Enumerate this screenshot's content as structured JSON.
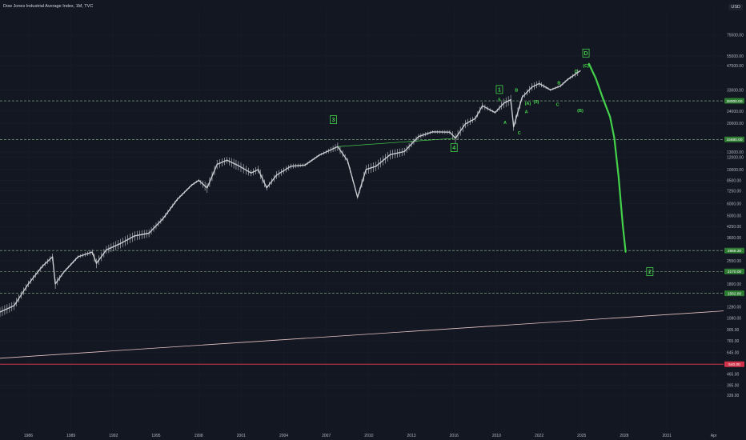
{
  "header": {
    "title": "Dow Jones Industrial Average Index, 1M, TVC",
    "currency": "USD"
  },
  "colors": {
    "background": "#131722",
    "candle_up": "#c9cbd1",
    "projection": "#43d14a",
    "level_line": "#8fbf8f",
    "trend_line": "#e8c4c4",
    "support_line": "#d2334a",
    "axis_text": "#b2b5be",
    "label_box": "#26a69a"
  },
  "chart_data": {
    "type": "line",
    "scale": "log",
    "title": "Dow Jones Industrial Average Index, 1M, TVC",
    "xlabel": "",
    "ylabel": "",
    "ylim": [
      200,
      110000
    ],
    "xlim": [
      1984.0,
      2035.0
    ],
    "x_ticks": [
      "1986",
      "1989",
      "1992",
      "1995",
      "1998",
      "2001",
      "2004",
      "2007",
      "2010",
      "2013",
      "2016",
      "2019",
      "2022",
      "2025",
      "2028",
      "2031",
      "Apr"
    ],
    "y_ticks": [
      "75500.00",
      "55000.00",
      "47500.00",
      "33000.00",
      "24000.00",
      "20000.00",
      "13000.00",
      "12000.00",
      "10000.00",
      "8500.00",
      "7250.00",
      "6000.00",
      "5000.00",
      "4250.00",
      "3600.00",
      "3000.00",
      "2550.00",
      "1800.00",
      "1280.00",
      "1080.00",
      "905.00",
      "765.00",
      "645.00",
      "465.00",
      "395.00",
      "339.00"
    ],
    "series": [
      {
        "x": [
          1984.0,
          1985.0,
          1986.0,
          1987.0,
          1987.7,
          1987.9,
          1988.5,
          1989.5,
          1990.5,
          1990.8,
          1991.5,
          1992.5,
          1993.5,
          1994.5,
          1995.5,
          1996.5,
          1997.5,
          1998.0,
          1998.6,
          1999.3,
          2000.0,
          2000.8,
          2001.7,
          2002.2,
          2002.8,
          2003.5,
          2004.5,
          2005.5,
          2006.5,
          2007.8,
          2008.5,
          2009.2,
          2009.8,
          2010.5,
          2011.5,
          2012.5,
          2013.5,
          2014.5,
          2015.7,
          2016.1,
          2016.8,
          2017.5,
          2018.0,
          2018.9,
          2019.5,
          2020.0,
          2020.2,
          2020.8,
          2021.5,
          2022.0,
          2022.8,
          2023.5,
          2024.0,
          2024.9
        ],
        "values": [
          1180,
          1300,
          1800,
          2350,
          2700,
          1800,
          2150,
          2700,
          2900,
          2450,
          3000,
          3300,
          3700,
          3850,
          4800,
          6400,
          7900,
          8500,
          7600,
          10800,
          11500,
          10600,
          9500,
          10000,
          7600,
          9200,
          10500,
          10700,
          12400,
          14100,
          11400,
          6600,
          10000,
          10500,
          12500,
          13100,
          16400,
          17600,
          17500,
          16000,
          19800,
          21500,
          26000,
          23500,
          27000,
          28500,
          19000,
          29500,
          34500,
          36300,
          33000,
          35000,
          38500,
          44000
        ]
      },
      {
        "name": "projection",
        "x": [
          2025.5,
          2026.0,
          2026.5,
          2027.0,
          2027.3,
          2027.6,
          2027.9,
          2028.1
        ],
        "values": [
          49000,
          39000,
          29000,
          22000,
          16000,
          9000,
          4300,
          2900
        ]
      }
    ],
    "horizontal_levels": [
      {
        "label": "28000.00",
        "value": 28000
      },
      {
        "label": "15680.00",
        "value": 15700
      },
      {
        "label": "2966.30",
        "value": 2966
      },
      {
        "label": "2170.00",
        "value": 2170
      },
      {
        "label": "1562.80",
        "value": 1562
      },
      {
        "label": "540.00",
        "value": 540
      }
    ],
    "annotations": [
      {
        "text": "D",
        "x": 2025.3,
        "y": 57000,
        "boxed": true
      },
      {
        "text": "(C)",
        "x": 2025.3,
        "y": 47500
      },
      {
        "text": "1",
        "x": 2019.2,
        "y": 33000,
        "boxed": true
      },
      {
        "text": "5",
        "x": 2019.2,
        "y": 28500
      },
      {
        "text": "B",
        "x": 2020.4,
        "y": 33000
      },
      {
        "text": "A",
        "x": 2019.6,
        "y": 20300
      },
      {
        "text": "C",
        "x": 2020.6,
        "y": 17300
      },
      {
        "text": "(A)",
        "x": 2021.2,
        "y": 27000
      },
      {
        "text": "A",
        "x": 2021.1,
        "y": 23800
      },
      {
        "text": "C",
        "x": 2023.3,
        "y": 26600
      },
      {
        "text": "(B)",
        "x": 2024.9,
        "y": 24300
      },
      {
        "text": "D",
        "x": 2024.6,
        "y": 43800
      },
      {
        "text": "B",
        "x": 2023.4,
        "y": 36800
      },
      {
        "text": "3",
        "x": 2007.5,
        "y": 21000,
        "boxed": true
      },
      {
        "text": "4",
        "x": 2016.0,
        "y": 13800,
        "boxed": true
      },
      {
        "text": "(5)",
        "x": 2021.8,
        "y": 27700
      },
      {
        "text": "2",
        "x": 2029.8,
        "y": 2150,
        "boxed": true
      }
    ]
  }
}
